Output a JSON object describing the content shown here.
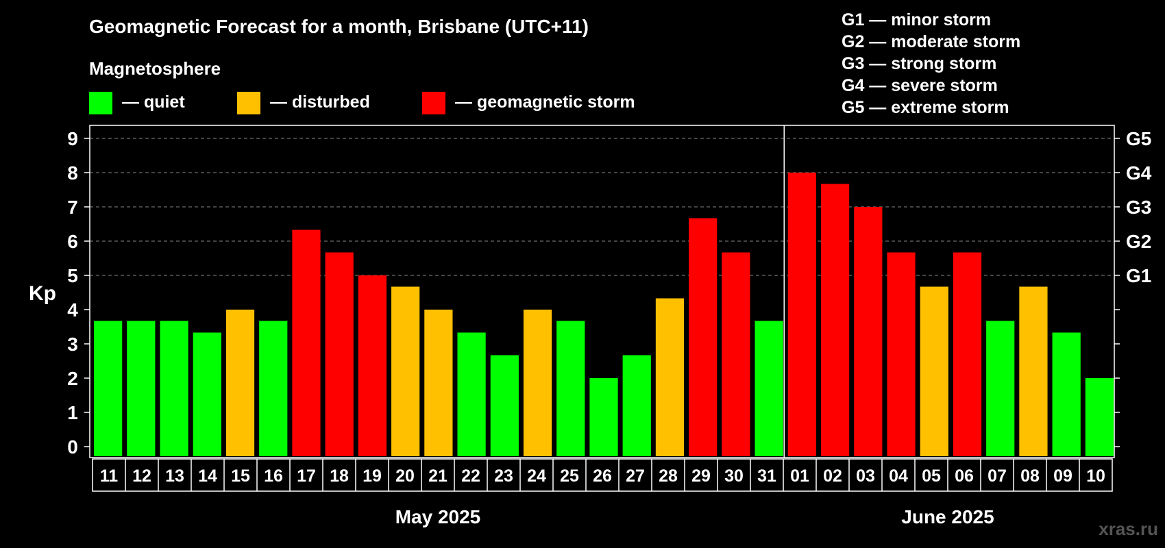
{
  "chart_data": {
    "type": "bar",
    "title": "Geomagnetic Forecast for a month, Brisbane (UTC+11)",
    "legend_title": "Magnetosphere",
    "legend": [
      {
        "key": "quiet",
        "label": "— quiet",
        "color": "#00ff00"
      },
      {
        "key": "disturbed",
        "label": "— disturbed",
        "color": "#ffc000"
      },
      {
        "key": "storm",
        "label": "— geomagnetic storm",
        "color": "#ff0000"
      }
    ],
    "storm_scale": [
      "G1 — minor storm",
      "G2 — moderate storm",
      "G3 — strong storm",
      "G4 — severe storm",
      "G5 — extreme storm"
    ],
    "ylabel": "Kp",
    "ylim": [
      0,
      9
    ],
    "y_ticks": [
      "0",
      "1",
      "2",
      "3",
      "4",
      "5",
      "6",
      "7",
      "8",
      "9"
    ],
    "right_axis_labels": [
      {
        "kp": 5,
        "label": "G1"
      },
      {
        "kp": 6,
        "label": "G2"
      },
      {
        "kp": 7,
        "label": "G3"
      },
      {
        "kp": 8,
        "label": "G4"
      },
      {
        "kp": 9,
        "label": "G5"
      }
    ],
    "categories": [
      "11",
      "12",
      "13",
      "14",
      "15",
      "16",
      "17",
      "18",
      "19",
      "20",
      "21",
      "22",
      "23",
      "24",
      "25",
      "26",
      "27",
      "28",
      "29",
      "30",
      "31",
      "01",
      "02",
      "03",
      "04",
      "05",
      "06",
      "07",
      "08",
      "09",
      "10"
    ],
    "values": [
      3.67,
      3.67,
      3.67,
      3.33,
      4,
      3.67,
      6.33,
      5.67,
      5,
      4.67,
      4,
      3.33,
      2.67,
      4,
      3.67,
      2,
      2.67,
      4.33,
      6.67,
      5.67,
      3.67,
      8,
      7.67,
      7,
      5.67,
      4.67,
      5.67,
      3.67,
      4.67,
      3.33,
      2
    ],
    "levels": [
      "quiet",
      "quiet",
      "quiet",
      "quiet",
      "disturbed",
      "quiet",
      "storm",
      "storm",
      "storm",
      "disturbed",
      "disturbed",
      "quiet",
      "quiet",
      "disturbed",
      "quiet",
      "quiet",
      "quiet",
      "disturbed",
      "storm",
      "storm",
      "quiet",
      "storm",
      "storm",
      "storm",
      "storm",
      "disturbed",
      "storm",
      "quiet",
      "disturbed",
      "quiet",
      "quiet"
    ],
    "months": [
      {
        "label": "May 2025",
        "count": 21
      },
      {
        "label": "June 2025",
        "count": 10
      }
    ],
    "grid": "dashed horizontal"
  },
  "watermark": "xras.ru"
}
